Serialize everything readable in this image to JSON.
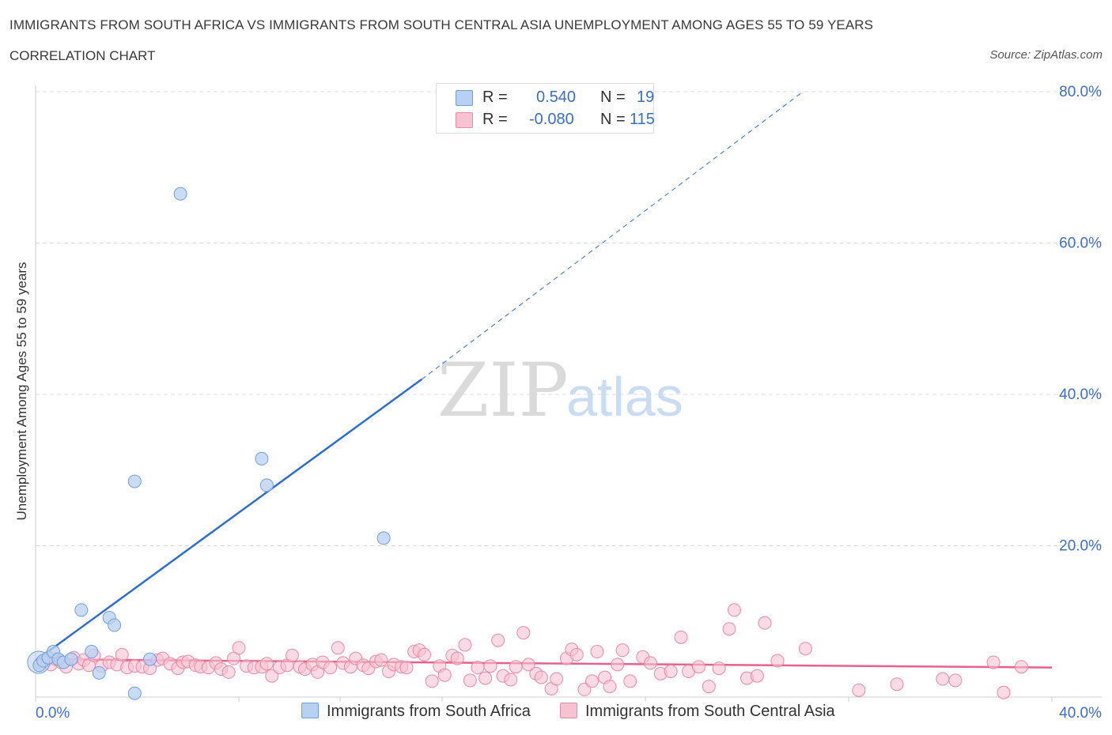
{
  "header": {
    "title": "IMMIGRANTS FROM SOUTH AFRICA VS IMMIGRANTS FROM SOUTH CENTRAL ASIA UNEMPLOYMENT AMONG AGES 55 TO 59 YEARS",
    "subtitle": "CORRELATION CHART",
    "source": "Source: ZipAtlas.com"
  },
  "legend": {
    "r_label": "R =",
    "n_label": "N =",
    "series1": {
      "r": "0.540",
      "n": "19"
    },
    "series2": {
      "r": "-0.080",
      "n": "115"
    }
  },
  "watermark": {
    "zip": "ZIP",
    "atlas": "atlas"
  },
  "colors": {
    "blue_fill": "#b8d0f2",
    "blue_stroke": "#6f9fd8",
    "blue_line": "#2f6fcc",
    "pink_fill": "#f7c2d2",
    "pink_stroke": "#e88aa8",
    "pink_line": "#e8608c",
    "axis_text": "#3b6fc4"
  },
  "chart_data": {
    "type": "scatter",
    "title": "IMMIGRANTS FROM SOUTH AFRICA VS IMMIGRANTS FROM SOUTH CENTRAL ASIA UNEMPLOYMENT AMONG AGES 55 TO 59 YEARS",
    "xlabel": "",
    "ylabel": "Unemployment Among Ages 55 to 59 years",
    "xlim": [
      0,
      40
    ],
    "ylim": [
      0,
      80
    ],
    "x_tick_labels": [
      "0.0%",
      "40.0%"
    ],
    "y_ticks": [
      20,
      40,
      60,
      80
    ],
    "y_tick_labels": [
      "20.0%",
      "40.0%",
      "60.0%",
      "80.0%"
    ],
    "grid": true,
    "legend_position": "bottom",
    "series": [
      {
        "name": "Immigrants from South Africa",
        "color": "blue",
        "points": [
          [
            0.15,
            4.2
          ],
          [
            0.3,
            4.8
          ],
          [
            0.5,
            5.2
          ],
          [
            0.7,
            6.0
          ],
          [
            0.9,
            5.0
          ],
          [
            1.1,
            4.6
          ],
          [
            1.4,
            5.0
          ],
          [
            1.8,
            11.5
          ],
          [
            2.2,
            6.0
          ],
          [
            2.5,
            3.2
          ],
          [
            2.9,
            10.5
          ],
          [
            3.1,
            9.5
          ],
          [
            3.9,
            28.5
          ],
          [
            3.9,
            0.5
          ],
          [
            4.5,
            5.0
          ],
          [
            5.7,
            66.5
          ],
          [
            8.9,
            31.5
          ],
          [
            9.1,
            28.0
          ],
          [
            13.7,
            21.0
          ]
        ],
        "trend": {
          "x0": 0.0,
          "y0": 4.8,
          "x1": 15.2,
          "y1": 42.0,
          "dashed_to_x": 30.2,
          "dashed_to_y": 80.0
        }
      },
      {
        "name": "Immigrants from South Central Asia",
        "color": "pink",
        "points": [
          [
            0.2,
            4.5
          ],
          [
            0.4,
            4.8
          ],
          [
            0.6,
            4.3
          ],
          [
            0.8,
            5.0
          ],
          [
            1.0,
            4.6
          ],
          [
            1.2,
            4.0
          ],
          [
            1.5,
            5.2
          ],
          [
            1.7,
            4.4
          ],
          [
            1.9,
            4.9
          ],
          [
            2.1,
            4.2
          ],
          [
            2.3,
            5.5
          ],
          [
            2.6,
            4.1
          ],
          [
            2.9,
            4.6
          ],
          [
            3.2,
            4.3
          ],
          [
            3.4,
            5.6
          ],
          [
            3.6,
            3.9
          ],
          [
            3.9,
            4.1
          ],
          [
            4.2,
            4.0
          ],
          [
            4.5,
            3.8
          ],
          [
            4.8,
            4.9
          ],
          [
            5.0,
            5.1
          ],
          [
            5.3,
            4.4
          ],
          [
            5.6,
            3.8
          ],
          [
            5.8,
            4.6
          ],
          [
            6.0,
            4.7
          ],
          [
            6.3,
            4.2
          ],
          [
            6.5,
            4.0
          ],
          [
            6.8,
            3.9
          ],
          [
            7.1,
            4.5
          ],
          [
            7.3,
            3.7
          ],
          [
            7.6,
            3.3
          ],
          [
            7.8,
            5.1
          ],
          [
            8.0,
            6.5
          ],
          [
            8.3,
            4.1
          ],
          [
            8.6,
            3.9
          ],
          [
            8.9,
            4.0
          ],
          [
            9.1,
            4.4
          ],
          [
            9.3,
            2.8
          ],
          [
            9.6,
            3.9
          ],
          [
            9.9,
            4.2
          ],
          [
            10.1,
            5.5
          ],
          [
            10.4,
            4.0
          ],
          [
            10.6,
            3.7
          ],
          [
            10.9,
            4.3
          ],
          [
            11.1,
            3.3
          ],
          [
            11.3,
            4.6
          ],
          [
            11.6,
            3.9
          ],
          [
            11.9,
            6.5
          ],
          [
            12.1,
            4.5
          ],
          [
            12.4,
            4.0
          ],
          [
            12.6,
            5.1
          ],
          [
            12.9,
            4.2
          ],
          [
            13.1,
            3.8
          ],
          [
            13.4,
            4.7
          ],
          [
            13.6,
            4.9
          ],
          [
            13.9,
            3.4
          ],
          [
            14.1,
            4.3
          ],
          [
            14.4,
            4.0
          ],
          [
            14.6,
            3.9
          ],
          [
            14.9,
            6.0
          ],
          [
            15.1,
            6.2
          ],
          [
            15.3,
            5.6
          ],
          [
            15.6,
            2.1
          ],
          [
            15.9,
            4.1
          ],
          [
            16.1,
            2.9
          ],
          [
            16.4,
            5.5
          ],
          [
            16.6,
            5.1
          ],
          [
            16.9,
            6.9
          ],
          [
            17.1,
            2.2
          ],
          [
            17.4,
            3.9
          ],
          [
            17.7,
            2.5
          ],
          [
            17.9,
            4.1
          ],
          [
            18.2,
            7.5
          ],
          [
            18.4,
            2.8
          ],
          [
            18.7,
            2.3
          ],
          [
            18.9,
            4.0
          ],
          [
            19.2,
            8.5
          ],
          [
            19.4,
            4.3
          ],
          [
            19.7,
            3.1
          ],
          [
            19.9,
            2.6
          ],
          [
            20.3,
            1.1
          ],
          [
            20.5,
            2.4
          ],
          [
            20.9,
            5.1
          ],
          [
            21.1,
            6.3
          ],
          [
            21.3,
            5.6
          ],
          [
            21.6,
            1.0
          ],
          [
            21.9,
            2.1
          ],
          [
            22.1,
            6.0
          ],
          [
            22.4,
            2.6
          ],
          [
            22.6,
            1.4
          ],
          [
            22.9,
            4.3
          ],
          [
            23.1,
            6.2
          ],
          [
            23.4,
            2.1
          ],
          [
            23.9,
            5.3
          ],
          [
            24.2,
            4.5
          ],
          [
            24.6,
            3.1
          ],
          [
            25.0,
            3.4
          ],
          [
            25.4,
            7.9
          ],
          [
            25.7,
            3.4
          ],
          [
            26.1,
            4.0
          ],
          [
            26.5,
            1.4
          ],
          [
            26.9,
            3.8
          ],
          [
            27.3,
            9.0
          ],
          [
            27.5,
            11.5
          ],
          [
            28.0,
            2.5
          ],
          [
            28.4,
            2.8
          ],
          [
            28.7,
            9.8
          ],
          [
            29.2,
            4.8
          ],
          [
            30.3,
            6.4
          ],
          [
            32.4,
            0.9
          ],
          [
            33.9,
            1.7
          ],
          [
            35.7,
            2.4
          ],
          [
            36.2,
            2.2
          ],
          [
            37.7,
            4.6
          ],
          [
            38.1,
            0.6
          ],
          [
            38.8,
            4.0
          ]
        ],
        "trend": {
          "x0": 0.0,
          "y0": 5.0,
          "x1": 40.0,
          "y1": 3.9
        }
      }
    ]
  }
}
